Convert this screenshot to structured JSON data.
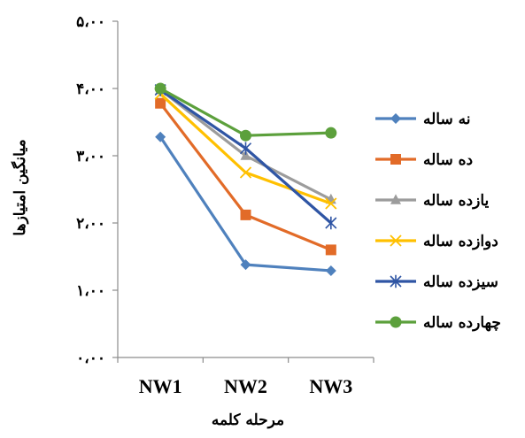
{
  "chart_data": {
    "type": "line",
    "categories": [
      "NW1",
      "NW2",
      "NW3"
    ],
    "xlabel": "مرحله کلمه",
    "ylabel": "میانگین امتیازها",
    "ylim": [
      0,
      5
    ],
    "yticks": [
      0,
      1,
      2,
      3,
      4,
      5
    ],
    "ytick_labels": [
      "۰،۰۰",
      "۱،۰۰",
      "۲،۰۰",
      "۳،۰۰",
      "۴،۰۰",
      "۵،۰۰"
    ],
    "grid": false,
    "legend_position": "right",
    "series": [
      {
        "name": "نه ساله",
        "values": [
          3.28,
          1.38,
          1.29
        ],
        "color": "#4f81bd",
        "marker": "diamond"
      },
      {
        "name": "ده ساله",
        "values": [
          3.78,
          2.12,
          1.6
        ],
        "color": "#e26b28",
        "marker": "square"
      },
      {
        "name": "یازده ساله",
        "values": [
          3.98,
          3.0,
          2.35
        ],
        "color": "#9c9c9c",
        "marker": "triangle"
      },
      {
        "name": "دوازده ساله",
        "values": [
          3.92,
          2.75,
          2.29
        ],
        "color": "#ffc000",
        "marker": "x"
      },
      {
        "name": "سیزده ساله",
        "values": [
          3.98,
          3.11,
          2.0
        ],
        "color": "#2f55a4",
        "marker": "star"
      },
      {
        "name": "چهارده ساله",
        "values": [
          4.0,
          3.3,
          3.34
        ],
        "color": "#5ca03c",
        "marker": "circle"
      }
    ]
  }
}
